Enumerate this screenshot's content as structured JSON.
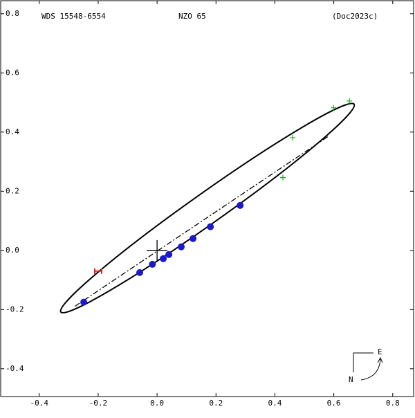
{
  "chart_data": {
    "type": "scatter",
    "title": "WDS 15548-6554",
    "subtitle": "NZO  65",
    "reference": "(Doc2023c)",
    "xlim": [
      -0.531,
      0.871
    ],
    "ylim": [
      -0.494,
      0.844
    ],
    "xticks": [
      {
        "value": -0.4,
        "label": "-0.4"
      },
      {
        "value": -0.2,
        "label": "-0.2"
      },
      {
        "value": 0,
        "label": "0.0"
      },
      {
        "value": 0.2,
        "label": "0.2"
      },
      {
        "value": 0.4,
        "label": "0.4"
      },
      {
        "value": 0.6,
        "label": "0.6"
      },
      {
        "value": 0.8,
        "label": "0.8"
      }
    ],
    "yticks": [
      {
        "value": 0.8,
        "label": "0.8"
      },
      {
        "value": 0.6,
        "label": "0.6"
      },
      {
        "value": 0.4,
        "label": "0.4"
      },
      {
        "value": 0.2,
        "label": "0.2"
      },
      {
        "value": 0,
        "label": "0.0"
      },
      {
        "value": -0.2,
        "label": "-0.2"
      },
      {
        "value": -0.4,
        "label": "-0.4"
      }
    ],
    "orbit": {
      "center": [
        0.171,
        0.143
      ],
      "semi_major": 0.61,
      "semi_minor": 0.052,
      "angle_deg": 35.3,
      "color": "#000000"
    },
    "line_of_nodes": {
      "x": [
        -0.279,
        0.582
      ],
      "y": [
        -0.189,
        0.386
      ]
    },
    "series": [
      {
        "marker": "dot",
        "color": "#1a1acc",
        "x": [
          -0.249,
          -0.059,
          -0.016,
          0.021,
          0.04,
          0.082,
          0.122,
          0.181,
          0.282
        ],
        "y": [
          -0.175,
          -0.075,
          -0.047,
          -0.028,
          -0.014,
          0.012,
          0.04,
          0.08,
          0.152
        ]
      },
      {
        "marker": "plus",
        "color": "#22aa22",
        "x": [
          0.427,
          0.46,
          0.599,
          0.653
        ],
        "y": [
          0.246,
          0.381,
          0.482,
          0.505
        ]
      },
      {
        "marker": "bar",
        "color": "#dd2222",
        "x": [
          -0.2
        ],
        "y": [
          -0.07
        ]
      }
    ],
    "compass": {
      "east": "E",
      "north": "N"
    }
  }
}
